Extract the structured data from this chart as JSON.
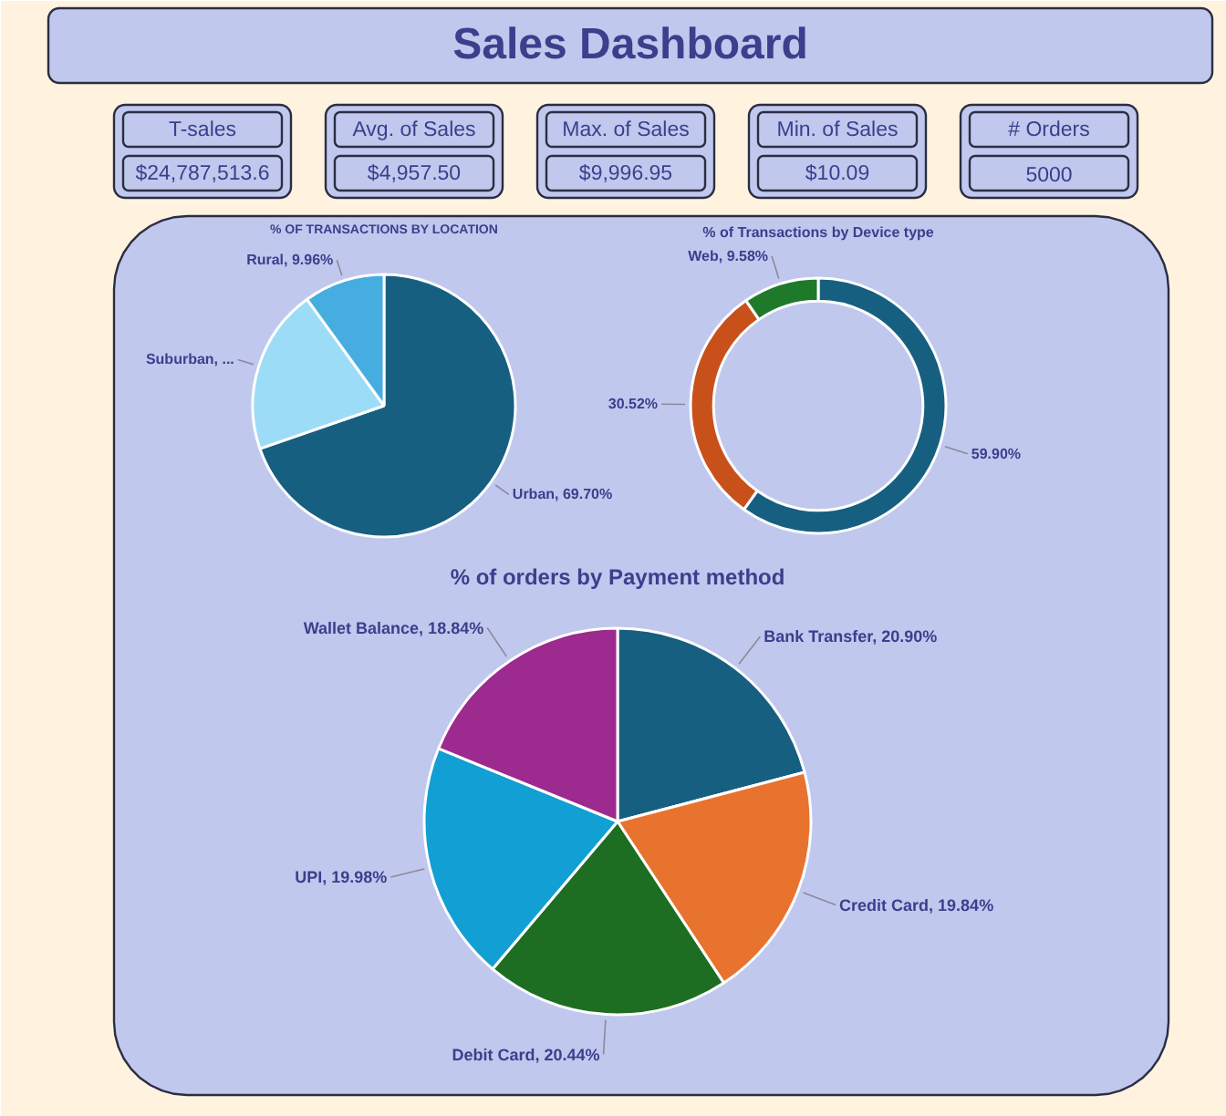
{
  "chart_data": [
    {
      "type": "other",
      "title": "Sales Dashboard",
      "annotations": [
        "T-sales",
        "$24,787,513.6",
        "Avg. of Sales",
        "$4,957.50",
        "Max. of Sales",
        "$9,996.95",
        "Min. of Sales",
        "$10.09",
        "# Orders",
        "5000"
      ]
    },
    {
      "type": "pie",
      "title": "% OF TRANSACTIONS BY LOCATION",
      "categories": [
        "Urban",
        "Suburban",
        "Rural"
      ],
      "values": [
        69.7,
        20.34,
        9.96
      ],
      "value_labels": [
        "69.70%",
        "...",
        "9.96%"
      ],
      "colors": [
        "#175f80",
        "#9ddcf7",
        "#46ade0"
      ]
    },
    {
      "type": "donut",
      "title": "% of Transactions by Device type",
      "categories": [
        null,
        null,
        "Web"
      ],
      "values": [
        59.9,
        30.52,
        9.58
      ],
      "value_labels": [
        "59.90%",
        "30.52%",
        "9.58%"
      ],
      "colors": [
        "#175f80",
        "#c8511b",
        "#1e7a2a"
      ]
    },
    {
      "type": "pie",
      "title": "% of orders by Payment method",
      "categories": [
        "Bank Transfer",
        "Credit Card",
        "Debit Card",
        "UPI",
        "Wallet Balance"
      ],
      "values": [
        20.9,
        19.84,
        20.44,
        19.98,
        18.84
      ],
      "value_labels": [
        "20.90%",
        "19.84%",
        "20.44%",
        "19.98%",
        "18.84%"
      ],
      "colors": [
        "#175f80",
        "#e8732e",
        "#1d6e22",
        "#129fd4",
        "#9c2a8f"
      ]
    }
  ]
}
